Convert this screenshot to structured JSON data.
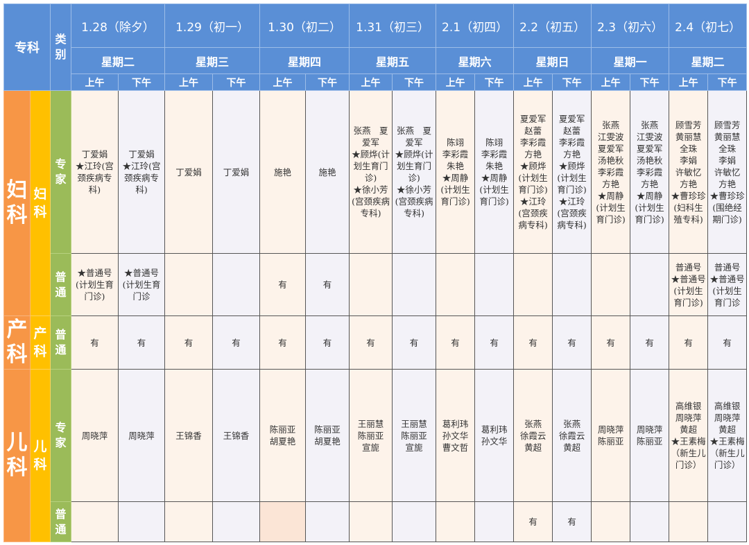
{
  "header": {
    "specialty_label": "专科",
    "category_label": "类别",
    "dates": [
      "1.28（除夕）",
      "1.29（初一）",
      "1.30（初二）",
      "1.31（初三）",
      "2.1（初四）",
      "2.2（初五）",
      "2.3（初六）",
      "2.4（初七）"
    ],
    "weekdays": [
      "星期二",
      "星期三",
      "星期四",
      "星期五",
      "星期六",
      "星期日",
      "星期一",
      "星期二"
    ],
    "am": "上午",
    "pm": "下午"
  },
  "departments": {
    "gyn": {
      "big": "妇科",
      "sub": "妇科",
      "expert": "专家",
      "general": "普通"
    },
    "obs": {
      "big": "产科",
      "sub": "产科",
      "general": "普通"
    },
    "ped": {
      "big": "儿科",
      "sub": "儿科",
      "expert": "专家",
      "general": "普通"
    }
  },
  "colors": {
    "header": "#5a8fd6",
    "specialty": "#f79646",
    "subspecialty": "#ffc000",
    "category": "#9bbb59",
    "am_cell": "#fdf3ea",
    "pm_cell": "#f3f2f8"
  },
  "rows": {
    "gyn_expert": [
      "丁爱娟\n★江玲(宫颈疾病专科)",
      "丁爱娟\n★江玲(宫颈疾病专科)",
      "丁爱娟",
      "丁爱娟",
      "施艳",
      "施艳",
      "张燕　夏爱军\n★顾烨(计划生育门诊)\n★徐小芳(宫颈疾病专科)",
      "张燕　夏爱军\n★顾烨(计划生育门诊)\n★徐小芳(宫颈疾病专科)",
      "陈翊\n李彩霞\n朱艳\n★周静(计划生育门诊)",
      "陈翊\n李彩霞\n朱艳\n★周静(计划生育门诊)",
      "夏爱军\n赵蕾\n李彩霞\n方艳\n★顾烨(计划生育门诊)\n★江玲(宫颈疾病专科)",
      "夏爱军\n赵蕾\n李彩霞\n方艳\n★顾烨(计划生育门诊)\n★江玲(宫颈疾病专科)",
      "张燕\n江雯波\n夏爱军\n汤艳秋\n李彩霞\n方艳\n★周静(计划生育门诊)",
      "张燕\n江雯波\n夏爱军\n汤艳秋\n李彩霞\n方艳\n★周静(计划生育门诊)",
      "顾雪芳\n黄丽慧\n全珠\n李娟\n许敏忆\n方艳\n★曹珍珍(妇科生殖专科)",
      "顾雪芳\n黄丽慧\n全珠\n李娟\n许敏忆\n方艳\n★曹珍珍(围绝经期门诊)"
    ],
    "gyn_general": [
      "★普通号(计划生育门诊)",
      "★普通号(计划生育门诊",
      "",
      "",
      "有",
      "有",
      "",
      "",
      "",
      "",
      "",
      "",
      "",
      "",
      "普通号\n★普通号(计划生育门诊)",
      "普通号\n★普通号(计划生育门诊"
    ],
    "obs_general": [
      "有",
      "有",
      "有",
      "有",
      "有",
      "有",
      "有",
      "有",
      "有",
      "有",
      "有",
      "有",
      "有",
      "有",
      "有",
      "有"
    ],
    "ped_expert": [
      "周晓萍",
      "周晓萍",
      "王锦香",
      "王锦香",
      "陈丽亚\n胡夏艳",
      "陈丽亚\n胡夏艳",
      "王丽慧\n陈丽亚\n宣旎",
      "王丽慧\n陈丽亚\n宣旎",
      "葛利玮\n孙文华\n曹文哲",
      "葛利玮\n孙文华",
      "张燕\n徐霞云\n黄超",
      "张燕\n徐霞云\n黄超",
      "周晓萍\n陈丽亚",
      "周晓萍\n陈丽亚",
      "高维银\n周晓萍\n黄超\n★王素梅（新生儿门诊）",
      "高维银\n周晓萍\n黄超\n★王素梅（新生儿门诊）"
    ],
    "ped_general": [
      "",
      "",
      "",
      "",
      "",
      "",
      "",
      "",
      "",
      "",
      "有",
      "有",
      "",
      "",
      "",
      ""
    ]
  }
}
